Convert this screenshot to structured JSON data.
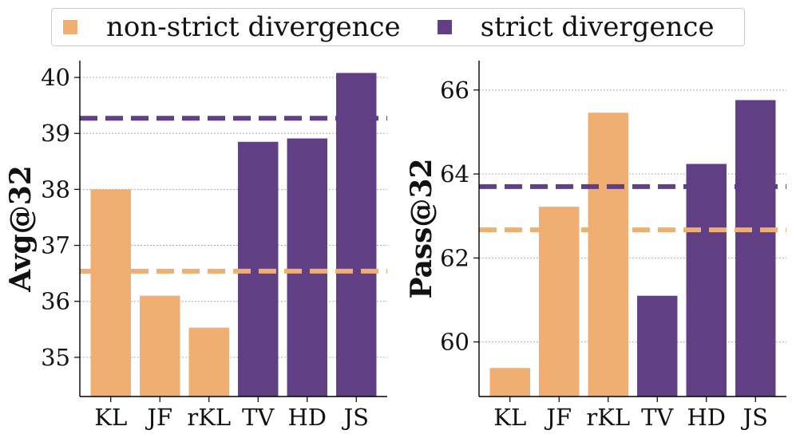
{
  "legend": {
    "items": [
      {
        "label": "non-strict divergence",
        "color": "#F0AE73"
      },
      {
        "label": "strict divergence",
        "color": "#603F85"
      }
    ]
  },
  "chart_data": [
    {
      "type": "bar",
      "ylabel": "Avg@32",
      "categories": [
        "KL",
        "JF",
        "rKL",
        "TV",
        "HD",
        "JS"
      ],
      "values": [
        38.0,
        36.1,
        35.53,
        38.85,
        38.91,
        40.08
      ],
      "groups": [
        "non-strict",
        "non-strict",
        "non-strict",
        "strict",
        "strict",
        "strict"
      ],
      "ylim": [
        34.3,
        40.3
      ],
      "yticks": [
        35,
        36,
        37,
        38,
        39,
        40
      ],
      "reference_lines": [
        {
          "group": "non-strict",
          "value": 36.54
        },
        {
          "group": "strict",
          "value": 39.27
        }
      ],
      "grid": "y"
    },
    {
      "type": "bar",
      "ylabel": "Pass@32",
      "categories": [
        "KL",
        "JF",
        "rKL",
        "TV",
        "HD",
        "JS"
      ],
      "values": [
        59.38,
        63.22,
        65.46,
        61.1,
        64.24,
        65.76
      ],
      "groups": [
        "non-strict",
        "non-strict",
        "non-strict",
        "strict",
        "strict",
        "strict"
      ],
      "ylim": [
        58.7,
        66.7
      ],
      "yticks": [
        60,
        62,
        64,
        66
      ],
      "reference_lines": [
        {
          "group": "non-strict",
          "value": 62.67
        },
        {
          "group": "strict",
          "value": 63.7
        }
      ],
      "grid": "y"
    }
  ]
}
